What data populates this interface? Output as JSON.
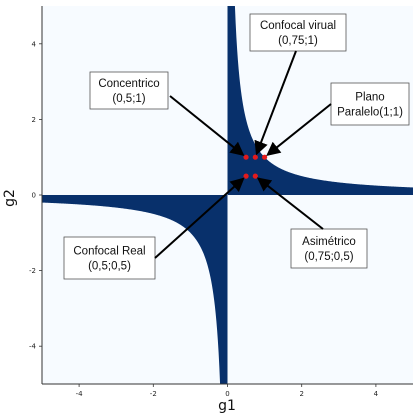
{
  "chart_data": {
    "type": "heatmap",
    "title": "",
    "xlabel": "g1",
    "ylabel": "g2",
    "xlim": [
      -5,
      5
    ],
    "ylim": [
      -5,
      5
    ],
    "x_ticks": [
      -4,
      -2,
      0,
      2,
      4
    ],
    "y_ticks": [
      -4,
      -2,
      0,
      2,
      4
    ],
    "x_tick_labels": [
      "-4",
      "-2",
      "0",
      "2",
      "4"
    ],
    "y_tick_labels": [
      "-4",
      "-2",
      "0",
      "2",
      "4"
    ],
    "stable_region": "0 <= g1*g2 <= 1",
    "colors": {
      "stable": "#08306b",
      "unstable": "#f7fbff",
      "points": "#e31a1c",
      "axes": "#333333"
    },
    "points": [
      {
        "name": "Concentrico",
        "g1": 0.5,
        "g2": 1
      },
      {
        "name": "Confocal virual",
        "g1": 0.75,
        "g2": 1
      },
      {
        "name": "Plano Paralelo",
        "g1": 1,
        "g2": 1
      },
      {
        "name": "Confocal Real",
        "g1": 0.5,
        "g2": 0.5
      },
      {
        "name": "Asimétrico",
        "g1": 0.75,
        "g2": 0.5
      }
    ],
    "annotations": [
      {
        "lines": [
          "Confocal virual",
          "(0,75;1)"
        ],
        "target": 1
      },
      {
        "lines": [
          "Concentrico",
          "(0,5;1)"
        ],
        "target": 0
      },
      {
        "lines": [
          "Plano",
          "Paralelo(1;1)"
        ],
        "target": 2
      },
      {
        "lines": [
          "Confocal Real",
          "(0,5;0,5)"
        ],
        "target": 3
      },
      {
        "lines": [
          "Asimétrico",
          "(0,75;0,5)"
        ],
        "target": 4
      }
    ]
  }
}
